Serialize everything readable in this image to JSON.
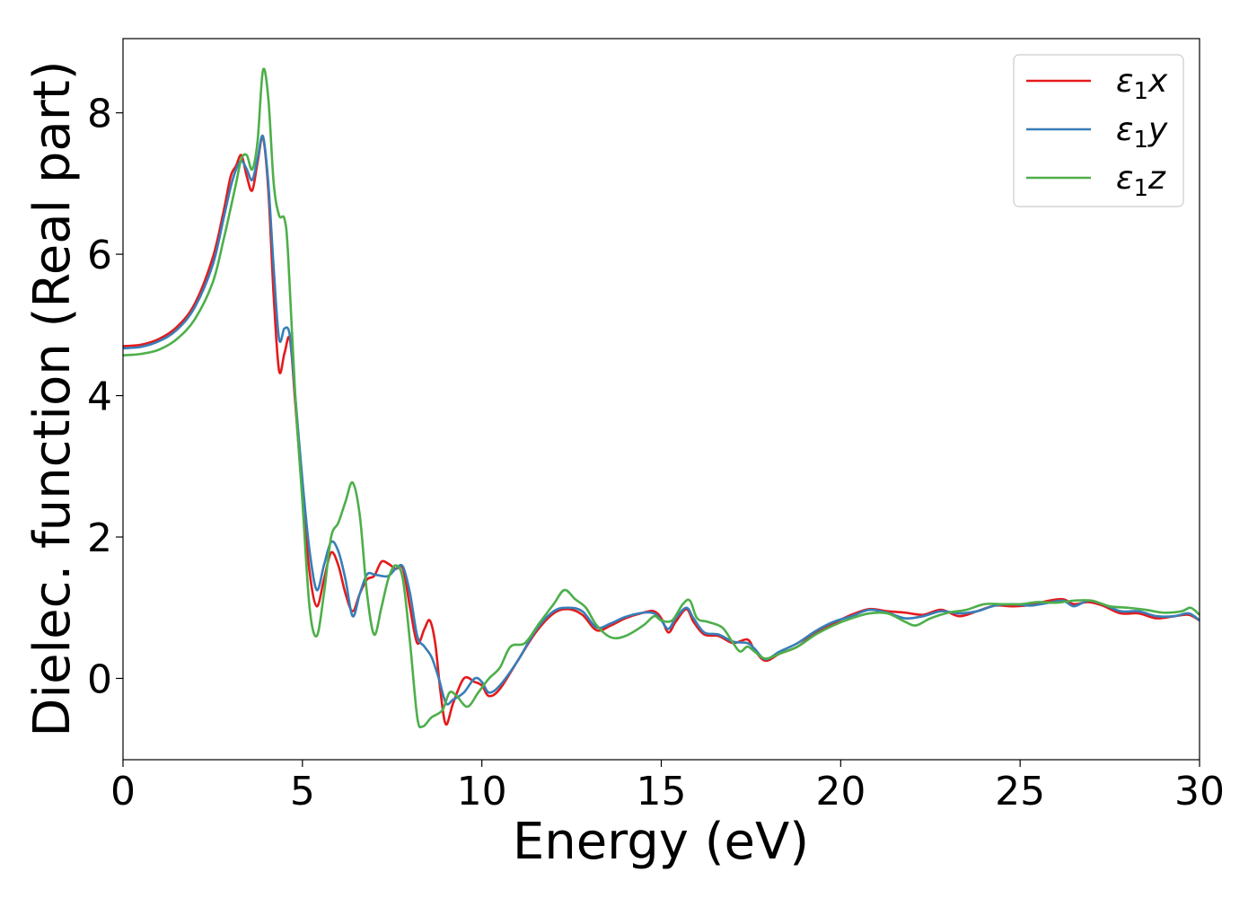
{
  "chart_data": {
    "type": "line",
    "title": "",
    "xlabel": "Energy (eV)",
    "ylabel": "Dielec. function (Real part)",
    "xlim": [
      0,
      30
    ],
    "ylim": [
      -1.15,
      9.05
    ],
    "xticks": [
      0,
      5,
      10,
      15,
      20,
      25,
      30
    ],
    "yticks": [
      0,
      2,
      4,
      6,
      8
    ],
    "grid": false,
    "legend_position": "upper-right",
    "series": [
      {
        "name": "ε1x",
        "legend": {
          "base": "ε",
          "sub": "1",
          "var": "x"
        },
        "color": "#e41a1c",
        "points": [
          [
            0,
            4.7
          ],
          [
            0.5,
            4.72
          ],
          [
            1,
            4.8
          ],
          [
            1.5,
            4.97
          ],
          [
            2,
            5.3
          ],
          [
            2.5,
            5.95
          ],
          [
            2.8,
            6.6
          ],
          [
            3.0,
            7.1
          ],
          [
            3.15,
            7.25
          ],
          [
            3.3,
            7.4
          ],
          [
            3.45,
            7.1
          ],
          [
            3.6,
            6.9
          ],
          [
            3.75,
            7.3
          ],
          [
            3.9,
            7.65
          ],
          [
            4.05,
            6.9
          ],
          [
            4.2,
            5.4
          ],
          [
            4.35,
            4.35
          ],
          [
            4.5,
            4.6
          ],
          [
            4.65,
            4.8
          ],
          [
            4.8,
            3.9
          ],
          [
            5.0,
            2.6
          ],
          [
            5.2,
            1.5
          ],
          [
            5.4,
            1.02
          ],
          [
            5.6,
            1.4
          ],
          [
            5.8,
            1.78
          ],
          [
            6.0,
            1.6
          ],
          [
            6.2,
            1.2
          ],
          [
            6.4,
            0.95
          ],
          [
            6.6,
            1.2
          ],
          [
            6.8,
            1.4
          ],
          [
            7.0,
            1.45
          ],
          [
            7.2,
            1.65
          ],
          [
            7.4,
            1.62
          ],
          [
            7.6,
            1.55
          ],
          [
            7.8,
            1.55
          ],
          [
            8.0,
            1.0
          ],
          [
            8.2,
            0.5
          ],
          [
            8.4,
            0.7
          ],
          [
            8.55,
            0.82
          ],
          [
            8.7,
            0.5
          ],
          [
            8.85,
            -0.2
          ],
          [
            9.0,
            -0.65
          ],
          [
            9.2,
            -0.35
          ],
          [
            9.5,
            0.0
          ],
          [
            9.8,
            -0.05
          ],
          [
            10.0,
            -0.1
          ],
          [
            10.2,
            -0.25
          ],
          [
            10.5,
            -0.15
          ],
          [
            11.0,
            0.25
          ],
          [
            11.5,
            0.65
          ],
          [
            12.0,
            0.92
          ],
          [
            12.4,
            0.98
          ],
          [
            12.8,
            0.9
          ],
          [
            13.2,
            0.68
          ],
          [
            13.6,
            0.75
          ],
          [
            14.0,
            0.85
          ],
          [
            14.5,
            0.93
          ],
          [
            14.8,
            0.95
          ],
          [
            15.0,
            0.85
          ],
          [
            15.2,
            0.65
          ],
          [
            15.4,
            0.8
          ],
          [
            15.7,
            0.98
          ],
          [
            15.9,
            0.8
          ],
          [
            16.2,
            0.62
          ],
          [
            16.6,
            0.6
          ],
          [
            17.0,
            0.5
          ],
          [
            17.4,
            0.55
          ],
          [
            17.6,
            0.4
          ],
          [
            17.9,
            0.25
          ],
          [
            18.3,
            0.35
          ],
          [
            18.8,
            0.45
          ],
          [
            19.3,
            0.65
          ],
          [
            19.8,
            0.78
          ],
          [
            20.3,
            0.9
          ],
          [
            20.8,
            0.98
          ],
          [
            21.3,
            0.95
          ],
          [
            21.8,
            0.93
          ],
          [
            22.3,
            0.9
          ],
          [
            22.8,
            0.97
          ],
          [
            23.3,
            0.88
          ],
          [
            23.8,
            0.95
          ],
          [
            24.3,
            1.03
          ],
          [
            24.8,
            1.02
          ],
          [
            25.3,
            1.04
          ],
          [
            25.8,
            1.1
          ],
          [
            26.2,
            1.12
          ],
          [
            26.5,
            1.05
          ],
          [
            26.9,
            1.08
          ],
          [
            27.3,
            1.03
          ],
          [
            27.8,
            0.92
          ],
          [
            28.3,
            0.92
          ],
          [
            28.8,
            0.85
          ],
          [
            29.3,
            0.88
          ],
          [
            29.7,
            0.9
          ],
          [
            30.0,
            0.82
          ]
        ]
      },
      {
        "name": "ε1y",
        "legend": {
          "base": "ε",
          "sub": "1",
          "var": "y"
        },
        "color": "#377eb8",
        "points": [
          [
            0,
            4.67
          ],
          [
            0.5,
            4.69
          ],
          [
            1,
            4.77
          ],
          [
            1.5,
            4.93
          ],
          [
            2,
            5.25
          ],
          [
            2.5,
            5.85
          ],
          [
            2.8,
            6.5
          ],
          [
            3.0,
            6.95
          ],
          [
            3.15,
            7.2
          ],
          [
            3.3,
            7.32
          ],
          [
            3.45,
            7.2
          ],
          [
            3.6,
            7.05
          ],
          [
            3.75,
            7.35
          ],
          [
            3.9,
            7.67
          ],
          [
            4.05,
            7.0
          ],
          [
            4.2,
            5.8
          ],
          [
            4.35,
            4.8
          ],
          [
            4.5,
            4.95
          ],
          [
            4.65,
            4.85
          ],
          [
            4.8,
            4.0
          ],
          [
            5.0,
            2.8
          ],
          [
            5.2,
            1.8
          ],
          [
            5.4,
            1.25
          ],
          [
            5.6,
            1.6
          ],
          [
            5.8,
            1.93
          ],
          [
            6.0,
            1.8
          ],
          [
            6.2,
            1.4
          ],
          [
            6.4,
            0.88
          ],
          [
            6.6,
            1.2
          ],
          [
            6.8,
            1.47
          ],
          [
            7.0,
            1.47
          ],
          [
            7.2,
            1.45
          ],
          [
            7.4,
            1.45
          ],
          [
            7.6,
            1.55
          ],
          [
            7.8,
            1.58
          ],
          [
            8.0,
            1.2
          ],
          [
            8.2,
            0.6
          ],
          [
            8.4,
            0.45
          ],
          [
            8.6,
            0.3
          ],
          [
            8.8,
            0.0
          ],
          [
            9.0,
            -0.35
          ],
          [
            9.2,
            -0.3
          ],
          [
            9.5,
            -0.2
          ],
          [
            9.8,
            0.0
          ],
          [
            10.0,
            -0.05
          ],
          [
            10.2,
            -0.2
          ],
          [
            10.5,
            -0.1
          ],
          [
            11.0,
            0.25
          ],
          [
            11.5,
            0.68
          ],
          [
            12.0,
            0.95
          ],
          [
            12.4,
            1.0
          ],
          [
            12.8,
            0.95
          ],
          [
            13.2,
            0.72
          ],
          [
            13.6,
            0.78
          ],
          [
            14.0,
            0.87
          ],
          [
            14.5,
            0.93
          ],
          [
            14.8,
            0.92
          ],
          [
            15.0,
            0.82
          ],
          [
            15.2,
            0.7
          ],
          [
            15.4,
            0.85
          ],
          [
            15.7,
            1.0
          ],
          [
            15.9,
            0.85
          ],
          [
            16.2,
            0.65
          ],
          [
            16.6,
            0.62
          ],
          [
            17.0,
            0.52
          ],
          [
            17.4,
            0.5
          ],
          [
            17.6,
            0.42
          ],
          [
            17.9,
            0.27
          ],
          [
            18.3,
            0.38
          ],
          [
            18.8,
            0.5
          ],
          [
            19.3,
            0.67
          ],
          [
            19.8,
            0.8
          ],
          [
            20.3,
            0.88
          ],
          [
            20.8,
            0.97
          ],
          [
            21.3,
            0.93
          ],
          [
            21.8,
            0.85
          ],
          [
            22.3,
            0.88
          ],
          [
            22.8,
            0.95
          ],
          [
            23.3,
            0.92
          ],
          [
            23.8,
            0.95
          ],
          [
            24.3,
            1.03
          ],
          [
            24.8,
            1.05
          ],
          [
            25.3,
            1.03
          ],
          [
            25.8,
            1.07
          ],
          [
            26.2,
            1.1
          ],
          [
            26.5,
            1.02
          ],
          [
            26.9,
            1.1
          ],
          [
            27.3,
            1.05
          ],
          [
            27.8,
            0.95
          ],
          [
            28.3,
            0.95
          ],
          [
            28.8,
            0.88
          ],
          [
            29.3,
            0.88
          ],
          [
            29.7,
            0.92
          ],
          [
            30.0,
            0.82
          ]
        ]
      },
      {
        "name": "ε1z",
        "legend": {
          "base": "ε",
          "sub": "1",
          "var": "z"
        },
        "color": "#4daf4a",
        "points": [
          [
            0,
            4.57
          ],
          [
            0.5,
            4.59
          ],
          [
            1,
            4.65
          ],
          [
            1.5,
            4.8
          ],
          [
            2,
            5.08
          ],
          [
            2.5,
            5.6
          ],
          [
            2.8,
            6.2
          ],
          [
            3.0,
            6.65
          ],
          [
            3.15,
            7.0
          ],
          [
            3.3,
            7.35
          ],
          [
            3.45,
            7.4
          ],
          [
            3.6,
            7.2
          ],
          [
            3.75,
            7.6
          ],
          [
            3.9,
            8.6
          ],
          [
            4.05,
            8.2
          ],
          [
            4.2,
            7.0
          ],
          [
            4.35,
            6.55
          ],
          [
            4.5,
            6.5
          ],
          [
            4.6,
            6.0
          ],
          [
            4.8,
            4.0
          ],
          [
            5.0,
            2.5
          ],
          [
            5.2,
            1.0
          ],
          [
            5.4,
            0.6
          ],
          [
            5.6,
            1.2
          ],
          [
            5.8,
            2.0
          ],
          [
            6.0,
            2.2
          ],
          [
            6.2,
            2.5
          ],
          [
            6.4,
            2.77
          ],
          [
            6.6,
            2.3
          ],
          [
            6.8,
            1.2
          ],
          [
            7.0,
            0.62
          ],
          [
            7.2,
            1.0
          ],
          [
            7.4,
            1.42
          ],
          [
            7.6,
            1.6
          ],
          [
            7.8,
            1.4
          ],
          [
            8.0,
            0.5
          ],
          [
            8.2,
            -0.55
          ],
          [
            8.35,
            -0.68
          ],
          [
            8.6,
            -0.55
          ],
          [
            8.9,
            -0.45
          ],
          [
            9.1,
            -0.2
          ],
          [
            9.3,
            -0.25
          ],
          [
            9.6,
            -0.4
          ],
          [
            9.9,
            -0.2
          ],
          [
            10.2,
            0.0
          ],
          [
            10.5,
            0.15
          ],
          [
            10.8,
            0.45
          ],
          [
            11.2,
            0.5
          ],
          [
            11.6,
            0.78
          ],
          [
            12.0,
            1.05
          ],
          [
            12.3,
            1.25
          ],
          [
            12.6,
            1.12
          ],
          [
            12.9,
            1.0
          ],
          [
            13.2,
            0.75
          ],
          [
            13.6,
            0.58
          ],
          [
            14.0,
            0.6
          ],
          [
            14.5,
            0.75
          ],
          [
            14.8,
            0.88
          ],
          [
            15.0,
            0.82
          ],
          [
            15.3,
            0.82
          ],
          [
            15.6,
            1.05
          ],
          [
            15.8,
            1.1
          ],
          [
            16.0,
            0.85
          ],
          [
            16.3,
            0.8
          ],
          [
            16.7,
            0.72
          ],
          [
            17.0,
            0.5
          ],
          [
            17.2,
            0.38
          ],
          [
            17.4,
            0.45
          ],
          [
            17.6,
            0.38
          ],
          [
            17.9,
            0.28
          ],
          [
            18.3,
            0.35
          ],
          [
            18.8,
            0.45
          ],
          [
            19.3,
            0.62
          ],
          [
            19.8,
            0.75
          ],
          [
            20.3,
            0.85
          ],
          [
            20.8,
            0.92
          ],
          [
            21.3,
            0.92
          ],
          [
            21.8,
            0.8
          ],
          [
            22.1,
            0.75
          ],
          [
            22.5,
            0.85
          ],
          [
            23.0,
            0.93
          ],
          [
            23.5,
            0.97
          ],
          [
            24.0,
            1.05
          ],
          [
            24.5,
            1.05
          ],
          [
            25.0,
            1.05
          ],
          [
            25.5,
            1.08
          ],
          [
            26.0,
            1.07
          ],
          [
            26.5,
            1.1
          ],
          [
            27.0,
            1.1
          ],
          [
            27.5,
            1.02
          ],
          [
            28.0,
            1.0
          ],
          [
            28.5,
            0.97
          ],
          [
            29.0,
            0.93
          ],
          [
            29.5,
            0.95
          ],
          [
            29.75,
            1.0
          ],
          [
            30.0,
            0.9
          ]
        ]
      }
    ]
  }
}
